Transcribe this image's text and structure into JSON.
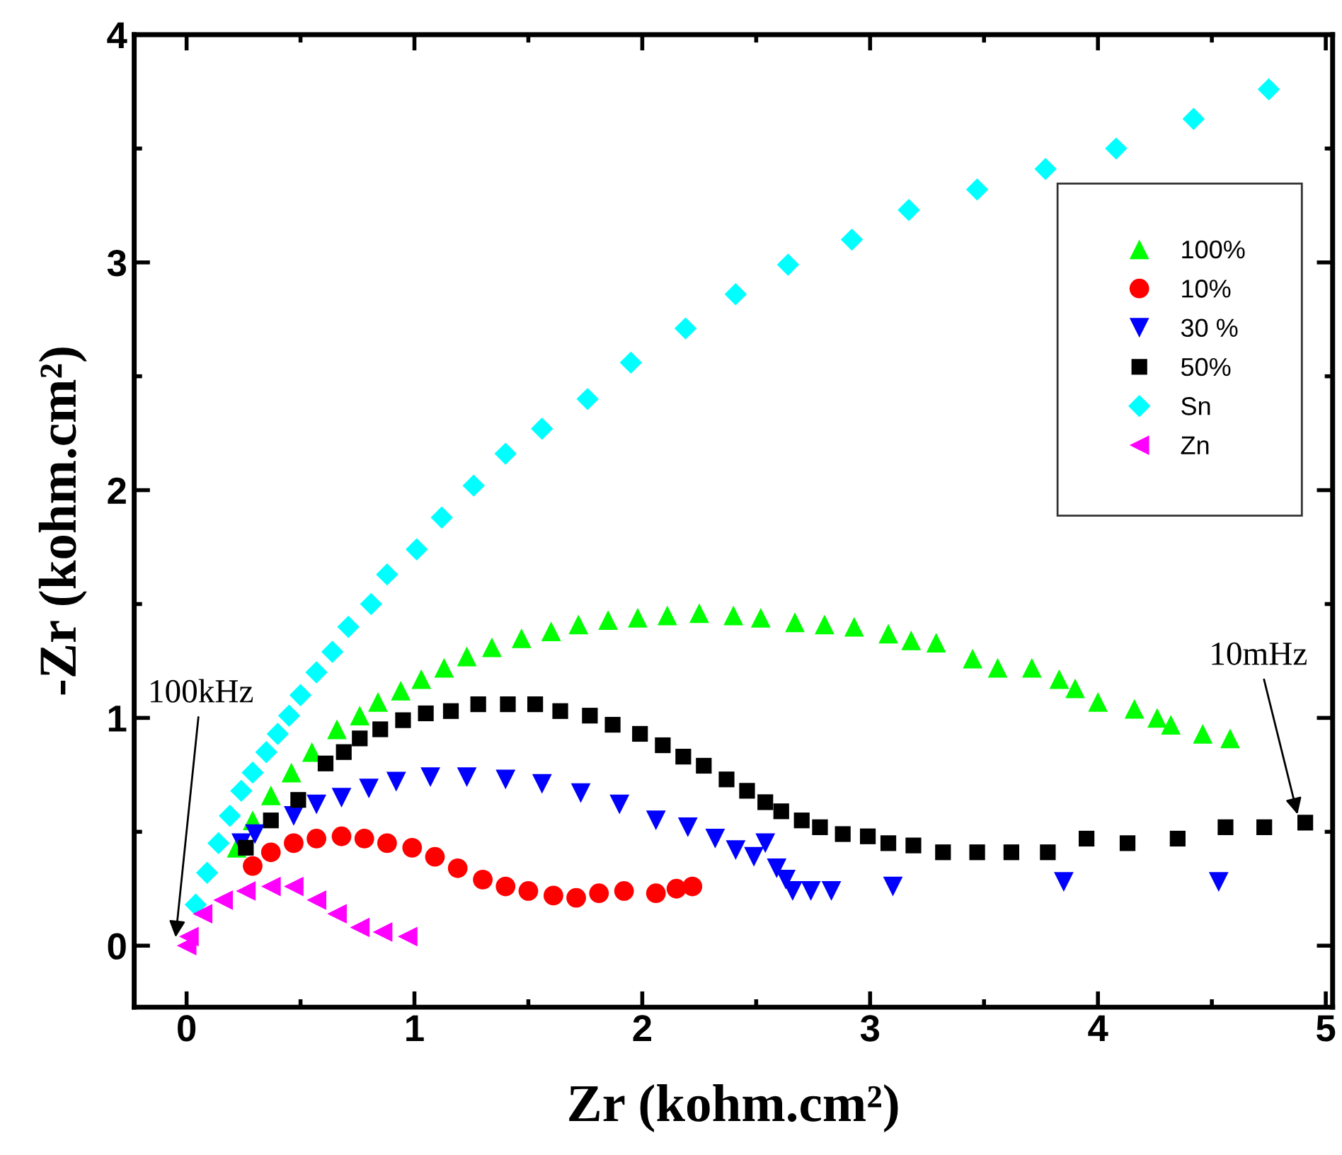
{
  "chart_data": {
    "type": "scatter",
    "xlabel": "Zr (kohm.cm²)",
    "ylabel": "-Zr (kohm.cm²)",
    "xlim": [
      -0.23,
      5.03
    ],
    "ylim": [
      -0.27,
      4.0
    ],
    "xticks": [
      0,
      1,
      2,
      3,
      4,
      5
    ],
    "yticks": [
      0,
      1,
      2,
      3,
      4
    ],
    "grid": false,
    "legend": "top right",
    "annotations": [
      {
        "text": "100kHz",
        "x": -0.05,
        "y": 0.02
      },
      {
        "text": "10mHz",
        "x": 4.88,
        "y": 0.56
      }
    ],
    "series": [
      {
        "name": "100%",
        "color": "#00ff00",
        "marker": "triangle",
        "x": [
          0.22,
          0.29,
          0.37,
          0.46,
          0.55,
          0.66,
          0.76,
          0.84,
          0.94,
          1.03,
          1.13,
          1.23,
          1.34,
          1.47,
          1.6,
          1.72,
          1.85,
          1.98,
          2.11,
          2.25,
          2.4,
          2.52,
          2.67,
          2.8,
          2.93,
          3.08,
          3.18,
          3.29,
          3.45,
          3.56,
          3.71,
          3.83,
          3.9,
          4.0,
          4.16,
          4.26,
          4.32,
          4.46,
          4.58
        ],
        "values": [
          0.43,
          0.55,
          0.66,
          0.76,
          0.85,
          0.95,
          1.01,
          1.07,
          1.12,
          1.17,
          1.22,
          1.27,
          1.31,
          1.35,
          1.38,
          1.41,
          1.43,
          1.44,
          1.45,
          1.46,
          1.45,
          1.44,
          1.42,
          1.41,
          1.4,
          1.37,
          1.34,
          1.33,
          1.26,
          1.22,
          1.22,
          1.17,
          1.13,
          1.07,
          1.04,
          1.0,
          0.97,
          0.93,
          0.91
        ]
      },
      {
        "name": "10%",
        "color": "#ff0000",
        "marker": "circle",
        "x": [
          0.29,
          0.37,
          0.47,
          0.57,
          0.68,
          0.78,
          0.88,
          0.99,
          1.09,
          1.19,
          1.3,
          1.4,
          1.5,
          1.61,
          1.71,
          1.81,
          1.92,
          2.06,
          2.15,
          2.22
        ],
        "values": [
          0.35,
          0.41,
          0.45,
          0.47,
          0.48,
          0.47,
          0.45,
          0.43,
          0.39,
          0.34,
          0.29,
          0.26,
          0.24,
          0.22,
          0.21,
          0.23,
          0.24,
          0.23,
          0.25,
          0.26
        ]
      },
      {
        "name": "30 %",
        "color": "#0000ff",
        "marker": "triangle_down",
        "x": [
          0.24,
          0.3,
          0.38,
          0.47,
          0.57,
          0.68,
          0.8,
          0.92,
          1.07,
          1.23,
          1.4,
          1.56,
          1.73,
          1.9,
          2.06,
          2.2,
          2.32,
          2.41,
          2.49,
          2.54,
          2.59,
          2.63,
          2.66,
          2.74,
          2.83,
          3.1,
          3.85,
          4.53
        ],
        "values": [
          0.45,
          0.49,
          null,
          0.57,
          0.62,
          0.65,
          0.69,
          0.72,
          0.74,
          0.74,
          0.73,
          0.71,
          0.67,
          0.62,
          0.55,
          0.52,
          0.47,
          0.42,
          0.39,
          0.45,
          0.34,
          0.29,
          0.24,
          0.24,
          0.24,
          0.26,
          0.28,
          0.28
        ]
      },
      {
        "name": "50%",
        "color": "#000000",
        "marker": "square",
        "x": [
          0.26,
          0.37,
          0.49,
          0.61,
          0.69,
          0.76,
          0.85,
          0.95,
          1.05,
          1.16,
          1.28,
          1.41,
          1.53,
          1.64,
          1.77,
          1.87,
          1.99,
          2.09,
          2.18,
          2.27,
          2.37,
          2.46,
          2.54,
          2.61,
          2.7,
          2.78,
          2.88,
          2.99,
          3.08,
          3.19,
          3.32,
          3.47,
          3.62,
          3.78,
          3.95,
          4.13,
          4.35,
          4.56,
          4.73,
          4.91
        ],
        "values": [
          0.43,
          0.55,
          0.64,
          0.8,
          0.85,
          0.91,
          0.95,
          0.99,
          1.02,
          1.03,
          1.06,
          1.06,
          1.06,
          1.03,
          1.01,
          0.97,
          0.93,
          0.88,
          0.83,
          0.79,
          0.73,
          0.68,
          0.63,
          0.59,
          0.55,
          0.52,
          0.49,
          0.48,
          0.45,
          0.44,
          0.41,
          0.41,
          0.41,
          0.41,
          0.47,
          0.45,
          0.47,
          0.52,
          0.52,
          0.54
        ]
      },
      {
        "name": "Sn",
        "color": "#00ffff",
        "marker": "diamond",
        "x": [
          0.04,
          0.09,
          0.14,
          0.19,
          0.24,
          0.29,
          0.35,
          0.4,
          0.45,
          0.5,
          0.57,
          0.64,
          0.71,
          0.81,
          0.88,
          1.01,
          1.12,
          1.26,
          1.4,
          1.56,
          1.76,
          1.95,
          2.19,
          2.41,
          2.64,
          2.92,
          3.17,
          3.47,
          3.77,
          4.08,
          4.42,
          4.75
        ],
        "values": [
          0.18,
          0.32,
          0.45,
          0.57,
          0.68,
          0.76,
          0.85,
          0.93,
          1.01,
          1.1,
          1.2,
          1.29,
          1.4,
          1.5,
          1.63,
          1.74,
          1.88,
          2.02,
          2.16,
          2.27,
          2.4,
          2.56,
          2.71,
          2.86,
          2.99,
          3.1,
          3.23,
          3.32,
          3.41,
          3.5,
          3.63,
          3.76
        ]
      },
      {
        "name": "Zn",
        "color": "#ff00ff",
        "marker": "triangle_left",
        "x": [
          0,
          0.01,
          0.07,
          0.16,
          0.26,
          0.37,
          0.47,
          0.57,
          0.66,
          0.76,
          0.86,
          0.97
        ],
        "values": [
          0,
          0.04,
          0.14,
          0.2,
          0.24,
          0.26,
          0.26,
          0.2,
          0.14,
          0.08,
          0.06,
          0.04
        ]
      }
    ]
  }
}
